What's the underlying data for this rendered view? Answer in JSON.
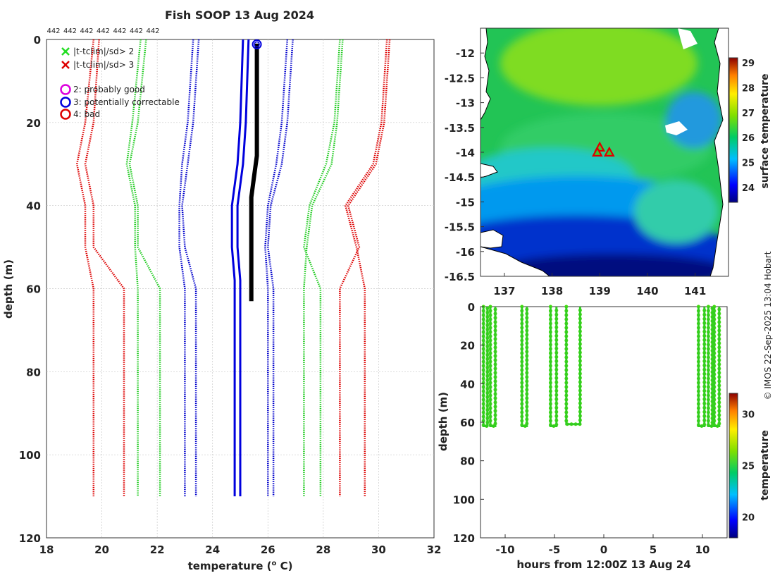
{
  "figure_title": "Fish SOOP 13 Aug 2024",
  "credit": "© IMOS 22-Sep-2025 13:04 Hobart",
  "chart_data": [
    {
      "type": "line",
      "name": "profile",
      "xlabel": "temperature (o C)",
      "xlabel_main": "temperature (",
      "xlabel_sup": "o",
      "xlabel_end": " C)",
      "ylabel": "depth (m)",
      "xlim": [
        18,
        32
      ],
      "ylim": [
        120,
        0
      ],
      "xticks": [
        18,
        20,
        22,
        24,
        26,
        28,
        30,
        32
      ],
      "yticks": [
        0,
        20,
        40,
        60,
        80,
        100,
        120
      ],
      "top_labels": [
        "442",
        "442",
        "442",
        "442",
        "442",
        "442",
        "442"
      ],
      "legend": [
        {
          "symbol": "x",
          "color": "#22dd22",
          "label": "|t-tclim|/sd> 2"
        },
        {
          "symbol": "x",
          "color": "#dd0000",
          "label": "|t-tclim|/sd> 3"
        },
        {
          "symbol": "o",
          "color": "#dd00dd",
          "label": "2: probably good"
        },
        {
          "symbol": "o",
          "color": "#0000dd",
          "label": "3: potentially correctable"
        },
        {
          "symbol": "o",
          "color": "#dd0000",
          "label": "4: bad"
        }
      ],
      "series": [
        {
          "name": "clim -3sd a",
          "color": "#dd0000",
          "style": "dotted",
          "points": [
            [
              19.9,
              0
            ],
            [
              19.7,
              20
            ],
            [
              19.4,
              30
            ],
            [
              19.7,
              40
            ],
            [
              19.7,
              50
            ],
            [
              20.8,
              60
            ],
            [
              20.8,
              110
            ]
          ]
        },
        {
          "name": "clim -3sd b",
          "color": "#dd0000",
          "style": "dotted",
          "points": [
            [
              19.7,
              0
            ],
            [
              19.4,
              20
            ],
            [
              19.1,
              30
            ],
            [
              19.4,
              40
            ],
            [
              19.4,
              50
            ],
            [
              19.7,
              60
            ],
            [
              19.7,
              110
            ]
          ]
        },
        {
          "name": "clim -2sd a",
          "color": "#22cc22",
          "style": "dotted",
          "points": [
            [
              21.6,
              0
            ],
            [
              21.3,
              20
            ],
            [
              21.0,
              30
            ],
            [
              21.3,
              40
            ],
            [
              21.3,
              50
            ],
            [
              22.1,
              60
            ],
            [
              22.1,
              110
            ]
          ]
        },
        {
          "name": "clim -2sd b",
          "color": "#22cc22",
          "style": "dotted",
          "points": [
            [
              21.4,
              0
            ],
            [
              21.1,
              20
            ],
            [
              20.9,
              30
            ],
            [
              21.2,
              40
            ],
            [
              21.2,
              50
            ],
            [
              21.3,
              60
            ],
            [
              21.3,
              110
            ]
          ]
        },
        {
          "name": "clim -1sd a",
          "color": "#0000cc",
          "style": "dotted",
          "points": [
            [
              23.5,
              0
            ],
            [
              23.3,
              20
            ],
            [
              23.1,
              30
            ],
            [
              22.9,
              40
            ],
            [
              23.0,
              50
            ],
            [
              23.4,
              60
            ],
            [
              23.4,
              110
            ]
          ]
        },
        {
          "name": "clim -1sd b",
          "color": "#0000cc",
          "style": "dotted",
          "points": [
            [
              23.3,
              0
            ],
            [
              23.1,
              20
            ],
            [
              22.9,
              30
            ],
            [
              22.8,
              40
            ],
            [
              22.8,
              50
            ],
            [
              23.0,
              60
            ],
            [
              23.0,
              110
            ]
          ]
        },
        {
          "name": "clim +1sd a",
          "color": "#0000cc",
          "style": "dotted",
          "points": [
            [
              26.9,
              0
            ],
            [
              26.7,
              20
            ],
            [
              26.5,
              30
            ],
            [
              26.1,
              40
            ],
            [
              26.0,
              50
            ],
            [
              26.2,
              60
            ],
            [
              26.2,
              110
            ]
          ]
        },
        {
          "name": "clim +1sd b",
          "color": "#0000cc",
          "style": "dotted",
          "points": [
            [
              26.7,
              0
            ],
            [
              26.5,
              20
            ],
            [
              26.3,
              30
            ],
            [
              26.0,
              40
            ],
            [
              25.9,
              50
            ],
            [
              26.0,
              60
            ],
            [
              26.0,
              110
            ]
          ]
        },
        {
          "name": "clim +2sd a",
          "color": "#22cc22",
          "style": "dotted",
          "points": [
            [
              28.7,
              0
            ],
            [
              28.5,
              20
            ],
            [
              28.3,
              30
            ],
            [
              27.6,
              40
            ],
            [
              27.4,
              50
            ],
            [
              27.3,
              60
            ],
            [
              27.3,
              110
            ]
          ]
        },
        {
          "name": "clim +2sd b",
          "color": "#22cc22",
          "style": "dotted",
          "points": [
            [
              28.6,
              0
            ],
            [
              28.4,
              20
            ],
            [
              28.1,
              30
            ],
            [
              27.5,
              40
            ],
            [
              27.3,
              50
            ],
            [
              27.9,
              60
            ],
            [
              27.9,
              110
            ]
          ]
        },
        {
          "name": "clim +3sd a",
          "color": "#dd0000",
          "style": "dotted",
          "points": [
            [
              30.4,
              0
            ],
            [
              30.2,
              20
            ],
            [
              29.9,
              30
            ],
            [
              28.9,
              40
            ],
            [
              29.3,
              50
            ],
            [
              28.6,
              60
            ],
            [
              28.6,
              110
            ]
          ]
        },
        {
          "name": "clim +3sd b",
          "color": "#dd0000",
          "style": "dotted",
          "points": [
            [
              30.3,
              0
            ],
            [
              30.1,
              20
            ],
            [
              29.8,
              30
            ],
            [
              28.8,
              40
            ],
            [
              29.2,
              50
            ],
            [
              29.5,
              60
            ],
            [
              29.5,
              110
            ]
          ]
        },
        {
          "name": "clim mean a",
          "color": "#0000dd",
          "style": "solid",
          "points": [
            [
              25.3,
              0
            ],
            [
              25.2,
              20
            ],
            [
              25.1,
              30
            ],
            [
              24.9,
              40
            ],
            [
              24.9,
              50
            ],
            [
              25.0,
              58
            ],
            [
              25.0,
              110
            ]
          ]
        },
        {
          "name": "clim mean b",
          "color": "#0000dd",
          "style": "solid",
          "points": [
            [
              25.1,
              0
            ],
            [
              25.0,
              20
            ],
            [
              24.9,
              30
            ],
            [
              24.7,
              40
            ],
            [
              24.7,
              50
            ],
            [
              24.8,
              58
            ],
            [
              24.8,
              110
            ]
          ]
        },
        {
          "name": "observed profiles",
          "color": "#000000",
          "style": "solid",
          "points": [
            [
              25.6,
              1
            ],
            [
              25.6,
              10
            ],
            [
              25.6,
              20
            ],
            [
              25.6,
              28
            ],
            [
              25.5,
              33
            ],
            [
              25.4,
              38
            ],
            [
              25.4,
              45
            ],
            [
              25.4,
              55
            ],
            [
              25.4,
              60
            ],
            [
              25.4,
              63
            ]
          ]
        }
      ],
      "flag_markers": [
        [
          25.6,
          1
        ]
      ]
    },
    {
      "type": "heatmap",
      "name": "map",
      "colorbar_label": "surface temperature",
      "xlim": [
        136.5,
        141.7
      ],
      "ylim": [
        -16.5,
        -11.5
      ],
      "xticks": [
        137,
        138,
        139,
        140,
        141
      ],
      "yticks": [
        -12,
        -12.5,
        -13,
        -13.5,
        -14,
        -14.5,
        -15,
        -15.5,
        -16,
        -16.5
      ],
      "colorbar_ticks": [
        24,
        25,
        26,
        27,
        28,
        29
      ],
      "colorbar_range": [
        23.4,
        29.2
      ],
      "stations": [
        [
          139.0,
          -13.9
        ],
        [
          138.95,
          -14.0
        ],
        [
          139.2,
          -14.0
        ]
      ]
    },
    {
      "type": "scatter",
      "name": "time-depth",
      "xlabel": "hours from 12:00Z 13 Aug 24",
      "ylabel": "depth (m)",
      "colorbar_label": "temperature",
      "xlim": [
        -12.5,
        12.5
      ],
      "ylim": [
        120,
        0
      ],
      "xticks": [
        -10,
        -5,
        0,
        5,
        10
      ],
      "yticks": [
        0,
        20,
        40,
        60,
        80,
        100,
        120
      ],
      "colorbar_ticks": [
        20,
        25,
        30
      ],
      "colorbar_range": [
        18,
        32
      ],
      "casts": [
        {
          "t0": -12.2,
          "t1": -11.8,
          "maxdepth": 62
        },
        {
          "t0": -11.5,
          "t1": -11.0,
          "maxdepth": 62
        },
        {
          "t0": -8.3,
          "t1": -7.8,
          "maxdepth": 62
        },
        {
          "t0": -5.4,
          "t1": -4.8,
          "maxdepth": 62
        },
        {
          "t0": -3.8,
          "t1": -2.4,
          "maxdepth": 61
        },
        {
          "t0": 9.6,
          "t1": 10.2,
          "maxdepth": 62
        },
        {
          "t0": 10.6,
          "t1": 11.0,
          "maxdepth": 62
        },
        {
          "t0": 11.2,
          "t1": 11.7,
          "maxdepth": 62
        }
      ]
    }
  ]
}
